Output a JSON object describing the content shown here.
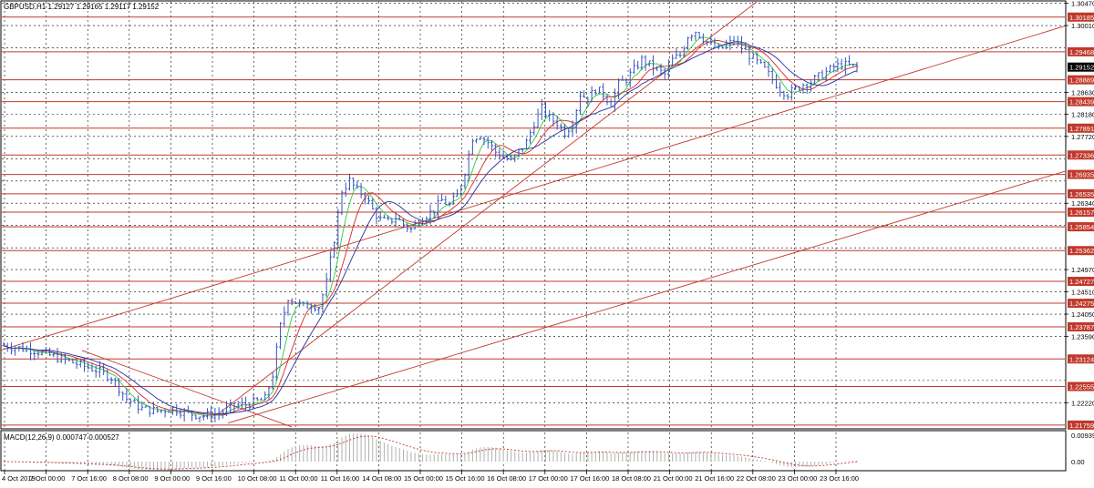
{
  "header": {
    "symbol_line": "GBPUSD,H1  1.29127 1.29165 1.29117 1.29152"
  },
  "macd": {
    "label": "MACD(12,26,9) 0.000747 0.000527",
    "axis_labels": [
      "0.009392",
      "0.00"
    ]
  },
  "colors": {
    "candle": "#3355bb",
    "level_line": "#c0392b",
    "trend_line": "#c0392b",
    "ma_fast": "#2ecc40",
    "ma_mid": "#d62728",
    "ma_slow": "#1f2fa0",
    "macd_hist": "#b0b0b0",
    "macd_signal": "#c0392b",
    "price_badge_bg": "#c0392b",
    "current_badge_bg": "#000000"
  },
  "chart_data": {
    "type": "candlestick",
    "title": "GBPUSD,H1",
    "ylim": [
      1.217,
      1.305
    ],
    "y_axis_ticks": [
      "1.30470",
      "1.30010",
      "1.29550",
      "1.28630",
      "1.28180",
      "1.27720",
      "1.27260",
      "1.26800",
      "1.26340",
      "1.25880",
      "1.25420",
      "1.24970",
      "1.24510",
      "1.24050",
      "1.23590",
      "1.22680",
      "1.22220"
    ],
    "x_axis_ticks": [
      "4 Oct 2019",
      "7 Oct 00:00",
      "7 Oct 16:00",
      "8 Oct 08:00",
      "9 Oct 00:00",
      "9 Oct 16:00",
      "10 Oct 08:00",
      "11 Oct 00:00",
      "11 Oct 16:00",
      "14 Oct 08:00",
      "15 Oct 00:00",
      "15 Oct 16:00",
      "16 Oct 08:00",
      "17 Oct 00:00",
      "17 Oct 16:00",
      "18 Oct 08:00",
      "21 Oct 00:00",
      "21 Oct 16:00",
      "22 Oct 08:00",
      "23 Oct 00:00",
      "23 Oct 16:00"
    ],
    "horizontal_levels": [
      1.30185,
      1.29468,
      1.28889,
      1.28439,
      1.27891,
      1.27336,
      1.26935,
      1.26535,
      1.26157,
      1.25854,
      1.25362,
      1.24727,
      1.24275,
      1.23787,
      1.23124,
      1.22555,
      1.21759
    ],
    "current_price": 1.29152,
    "close_path": [
      [
        0,
        1.234
      ],
      [
        4,
        1.2335
      ],
      [
        8,
        1.233
      ],
      [
        12,
        1.232
      ],
      [
        16,
        1.231
      ],
      [
        20,
        1.23
      ],
      [
        24,
        1.229
      ],
      [
        28,
        1.2275
      ],
      [
        32,
        1.223
      ],
      [
        36,
        1.221
      ],
      [
        40,
        1.2205
      ],
      [
        44,
        1.221
      ],
      [
        48,
        1.22
      ],
      [
        52,
        1.2195
      ],
      [
        56,
        1.22
      ],
      [
        60,
        1.2215
      ],
      [
        64,
        1.222
      ],
      [
        68,
        1.223
      ],
      [
        70,
        1.228
      ],
      [
        72,
        1.238
      ],
      [
        74,
        1.244
      ],
      [
        76,
        1.243
      ],
      [
        78,
        1.242
      ],
      [
        80,
        1.2425
      ],
      [
        82,
        1.242
      ],
      [
        84,
        1.247
      ],
      [
        86,
        1.256
      ],
      [
        88,
        1.266
      ],
      [
        90,
        1.268
      ],
      [
        92,
        1.266
      ],
      [
        94,
        1.265
      ],
      [
        96,
        1.262
      ],
      [
        98,
        1.26
      ],
      [
        100,
        1.2595
      ],
      [
        102,
        1.2605
      ],
      [
        104,
        1.259
      ],
      [
        106,
        1.258
      ],
      [
        108,
        1.26
      ],
      [
        110,
        1.261
      ],
      [
        112,
        1.262
      ],
      [
        114,
        1.264
      ],
      [
        116,
        1.263
      ],
      [
        118,
        1.265
      ],
      [
        120,
        1.27
      ],
      [
        122,
        1.277
      ],
      [
        124,
        1.2775
      ],
      [
        126,
        1.276
      ],
      [
        128,
        1.274
      ],
      [
        130,
        1.273
      ],
      [
        132,
        1.272
      ],
      [
        134,
        1.274
      ],
      [
        136,
        1.276
      ],
      [
        138,
        1.28
      ],
      [
        140,
        1.283
      ],
      [
        142,
        1.281
      ],
      [
        144,
        1.28
      ],
      [
        146,
        1.278
      ],
      [
        148,
        1.28
      ],
      [
        150,
        1.286
      ],
      [
        152,
        1.285
      ],
      [
        154,
        1.287
      ],
      [
        156,
        1.286
      ],
      [
        158,
        1.284
      ],
      [
        160,
        1.288
      ],
      [
        162,
        1.289
      ],
      [
        164,
        1.291
      ],
      [
        166,
        1.293
      ],
      [
        168,
        1.292
      ],
      [
        170,
        1.291
      ],
      [
        172,
        1.29
      ],
      [
        174,
        1.293
      ],
      [
        176,
        1.294
      ],
      [
        178,
        1.298
      ],
      [
        180,
        1.299
      ],
      [
        182,
        1.2975
      ],
      [
        184,
        1.296
      ],
      [
        186,
        1.295
      ],
      [
        188,
        1.296
      ],
      [
        190,
        1.297
      ],
      [
        192,
        1.2955
      ],
      [
        194,
        1.294
      ],
      [
        196,
        1.2925
      ],
      [
        198,
        1.291
      ],
      [
        200,
        1.289
      ],
      [
        202,
        1.287
      ],
      [
        204,
        1.286
      ],
      [
        206,
        1.287
      ],
      [
        208,
        1.288
      ],
      [
        210,
        1.2885
      ],
      [
        212,
        1.2895
      ],
      [
        214,
        1.2905
      ],
      [
        216,
        1.2915
      ],
      [
        218,
        1.292
      ],
      [
        220,
        1.2918
      ],
      [
        222,
        1.2915
      ]
    ],
    "indicators": [
      "moving average (fast)",
      "moving average (mid)",
      "moving average (slow)",
      "MACD(12,26,9)"
    ]
  }
}
